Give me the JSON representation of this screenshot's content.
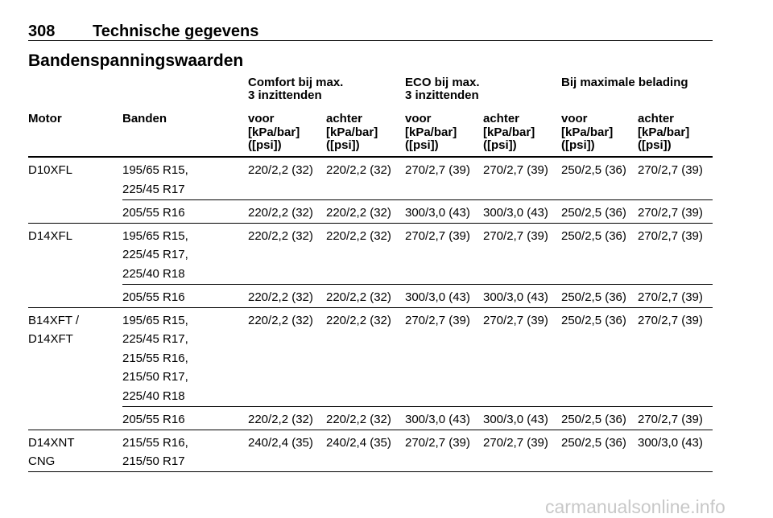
{
  "header": {
    "page_number": "308",
    "title": "Technische gegevens"
  },
  "section_title": "Bandenspanningswaarden",
  "table": {
    "group_headers": [
      [
        "Comfort bij max.",
        "3 inzittenden"
      ],
      [
        "ECO bij max.",
        "3 inzittenden"
      ],
      [
        "Bij maximale belading"
      ]
    ],
    "columns": [
      "Motor",
      "Banden",
      "voor",
      "achter",
      "voor",
      "achter",
      "voor",
      "achter"
    ],
    "units": [
      [
        "[kPa/bar]",
        "([psi])"
      ],
      [
        "[kPa/bar]",
        "([psi])"
      ],
      [
        "[kPa/bar]",
        "([psi])"
      ],
      [
        "[kPa/bar]",
        "([psi])"
      ],
      [
        "[kPa/bar]",
        "([psi])"
      ],
      [
        "[kPa/bar]",
        "([psi])"
      ]
    ],
    "groups": [
      {
        "motor": [
          "D10XFL"
        ],
        "rows": [
          {
            "banden": [
              "195/65 R15,",
              "225/45 R17"
            ],
            "values": [
              "220/2,2 (32)",
              "220/2,2 (32)",
              "270/2,7 (39)",
              "270/2,7 (39)",
              "250/2,5 (36)",
              "270/2,7 (39)"
            ]
          },
          {
            "banden": [
              "205/55 R16"
            ],
            "values": [
              "220/2,2 (32)",
              "220/2,2 (32)",
              "300/3,0 (43)",
              "300/3,0 (43)",
              "250/2,5 (36)",
              "270/2,7 (39)"
            ]
          }
        ]
      },
      {
        "motor": [
          "D14XFL"
        ],
        "rows": [
          {
            "banden": [
              "195/65 R15,",
              "225/45 R17,",
              "225/40 R18"
            ],
            "values": [
              "220/2,2 (32)",
              "220/2,2 (32)",
              "270/2,7 (39)",
              "270/2,7 (39)",
              "250/2,5 (36)",
              "270/2,7 (39)"
            ]
          },
          {
            "banden": [
              "205/55 R16"
            ],
            "values": [
              "220/2,2 (32)",
              "220/2,2 (32)",
              "300/3,0 (43)",
              "300/3,0 (43)",
              "250/2,5 (36)",
              "270/2,7 (39)"
            ]
          }
        ]
      },
      {
        "motor": [
          "B14XFT /",
          "D14XFT"
        ],
        "rows": [
          {
            "banden": [
              "195/65 R15,",
              "225/45 R17,",
              "215/55 R16,",
              "215/50 R17,",
              "225/40 R18"
            ],
            "values": [
              "220/2,2 (32)",
              "220/2,2 (32)",
              "270/2,7 (39)",
              "270/2,7 (39)",
              "250/2,5 (36)",
              "270/2,7 (39)"
            ]
          },
          {
            "banden": [
              "205/55 R16"
            ],
            "values": [
              "220/2,2 (32)",
              "220/2,2 (32)",
              "300/3,0 (43)",
              "300/3,0 (43)",
              "250/2,5 (36)",
              "270/2,7 (39)"
            ]
          }
        ]
      },
      {
        "motor": [
          "D14XNT",
          "CNG"
        ],
        "rows": [
          {
            "banden": [
              "215/55 R16,",
              "215/50 R17"
            ],
            "values": [
              "240/2,4 (35)",
              "240/2,4 (35)",
              "270/2,7 (39)",
              "270/2,7 (39)",
              "250/2,5 (36)",
              "300/3,0 (43)"
            ]
          }
        ]
      }
    ]
  },
  "watermark": "carmanualsonline.info"
}
